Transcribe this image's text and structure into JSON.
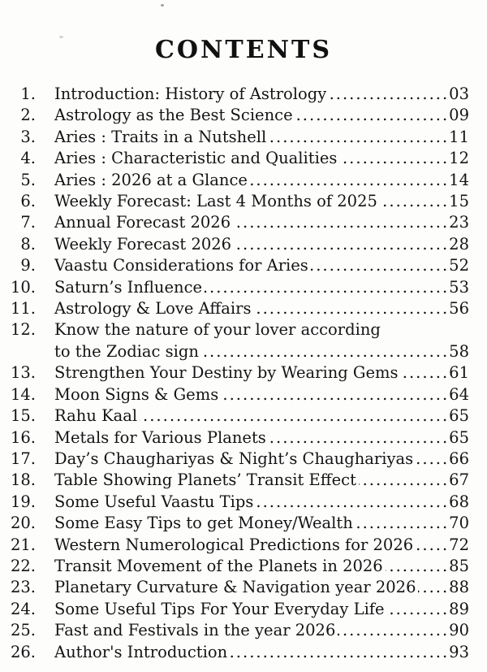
{
  "page_title": "CONTENTS",
  "entries": [
    {
      "num": "1.",
      "title": "Introduction: History of Astrology",
      "page": "03"
    },
    {
      "num": "2.",
      "title": "Astrology as the Best Science",
      "page": "09"
    },
    {
      "num": "3.",
      "title": "Aries : Traits in a Nutshell",
      "page": "11"
    },
    {
      "num": "4.",
      "title": "Aries : Characteristic and Qualities",
      "page": "12"
    },
    {
      "num": "5.",
      "title": "Aries : 2026 at a Glance",
      "page": "14"
    },
    {
      "num": "6.",
      "title": "Weekly Forecast: Last 4 Months of 2025",
      "page": "15"
    },
    {
      "num": "7.",
      "title": "Annual Forecast 2026",
      "page": "23"
    },
    {
      "num": "8.",
      "title": "Weekly Forecast 2026",
      "page": "28"
    },
    {
      "num": "9.",
      "title": "Vaastu Considerations for Aries",
      "page": "52"
    },
    {
      "num": "10.",
      "title": "Saturn’s Influence",
      "page": "53"
    },
    {
      "num": "11.",
      "title": "Astrology & Love Affairs",
      "page": "56"
    },
    {
      "num": "12.",
      "title": "Know the nature of your lover according",
      "title2": "to the Zodiac sign",
      "page": "58"
    },
    {
      "num": "13.",
      "title": "Strengthen Your Destiny by Wearing Gems",
      "page": "61"
    },
    {
      "num": "14.",
      "title": "Moon Signs & Gems",
      "page": "64"
    },
    {
      "num": "15.",
      "title": "Rahu Kaal",
      "page": "65"
    },
    {
      "num": "16.",
      "title": "Metals for Various Planets",
      "page": "65"
    },
    {
      "num": "17.",
      "title": "Day’s Chaughariyas & Night’s Chaughariyas",
      "page": "66"
    },
    {
      "num": "18.",
      "title": "Table Showing Planets’ Transit Effect",
      "page": "67"
    },
    {
      "num": "19.",
      "title": "Some Useful Vaastu Tips",
      "page": "68"
    },
    {
      "num": "20.",
      "title": "Some Easy Tips to get Money/Wealth",
      "page": "70"
    },
    {
      "num": "21.",
      "title": "Western Numerological Predictions for 2026",
      "page": "72"
    },
    {
      "num": "22.",
      "title": "Transit Movement of the Planets in 2026",
      "page": "85"
    },
    {
      "num": "23.",
      "title": "Planetary Curvature & Navigation year 2026",
      "page": "88"
    },
    {
      "num": "24.",
      "title": "Some Useful Tips For Your Everyday Life",
      "page": "89"
    },
    {
      "num": "25.",
      "title": "Fast and Festivals in the year 2026",
      "page": "90"
    },
    {
      "num": "26.",
      "title": "Author's Introduction",
      "page": "93"
    }
  ]
}
